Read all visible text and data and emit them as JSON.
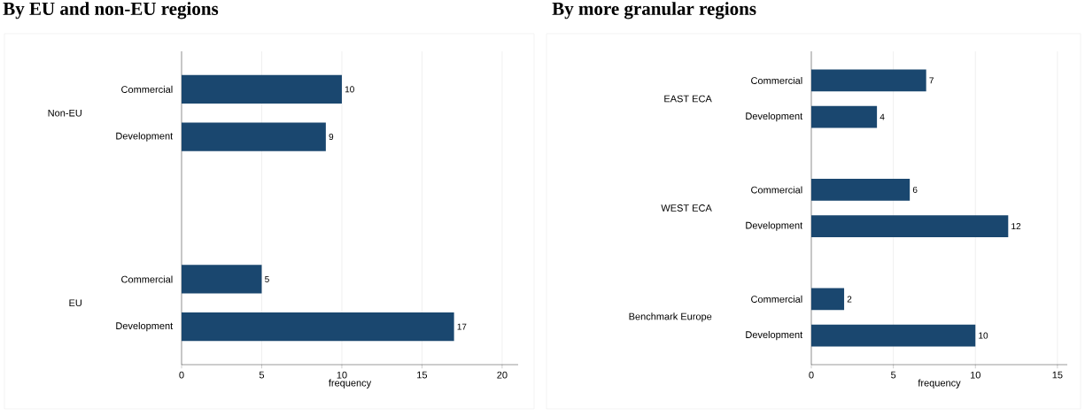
{
  "chart_data": [
    {
      "type": "bar",
      "orientation": "horizontal",
      "title": "By EU and non-EU regions",
      "xlabel": "frequency",
      "categories": [
        "Commercial",
        "Development",
        null,
        null,
        "Commercial",
        "Development"
      ],
      "annotations": [
        "Non-EU",
        "EU"
      ],
      "values": [
        10,
        9,
        null,
        null,
        5,
        17
      ],
      "color": "#1a476f",
      "data_labels": true,
      "xlim": [
        0,
        21
      ],
      "xticks": [
        0,
        5,
        10,
        15,
        20
      ],
      "grid": "x"
    },
    {
      "type": "bar",
      "orientation": "horizontal",
      "title": "By more granular regions",
      "xlabel": "frequency",
      "categories": [
        "Commercial",
        "Development",
        null,
        "Commercial",
        "Development",
        null,
        "Commercial",
        "Development"
      ],
      "annotations": [
        "EAST ECA",
        "WEST ECA",
        "Benchmark Europe"
      ],
      "values": [
        7,
        4,
        null,
        6,
        12,
        null,
        2,
        10
      ],
      "color": "#1a476f",
      "data_labels": true,
      "xlim": [
        0,
        15.6
      ],
      "xticks": [
        0,
        5,
        10,
        15
      ],
      "grid": "x"
    }
  ]
}
